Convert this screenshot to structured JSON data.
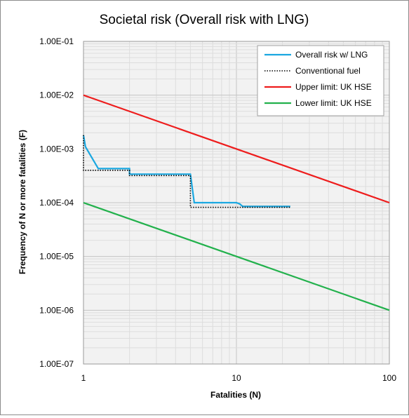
{
  "chart_data": {
    "type": "line",
    "title": "Societal risk (Overall risk with LNG)",
    "xlabel": "Fatalities (N)",
    "ylabel": "Frequency of N or more fatalities (F)",
    "x_scale": "log",
    "y_scale": "log",
    "xlim": [
      1,
      100
    ],
    "ylim": [
      1e-07,
      0.1
    ],
    "x_tick_labels": [
      "1",
      "10",
      "100"
    ],
    "y_tick_labels": [
      "1.00E-07",
      "1.00E-06",
      "1.00E-05",
      "1.00E-04",
      "1.00E-03",
      "1.00E-02",
      "1.00E-01"
    ],
    "grid": true,
    "legend_position": "top-right",
    "series": [
      {
        "name": "Overall risk w/ LNG",
        "color": "#1aa7e0",
        "dash": "solid",
        "points": [
          [
            1,
            0.0018
          ],
          [
            1.03,
            0.0011
          ],
          [
            1.1,
            0.0008
          ],
          [
            1.25,
            0.00043
          ],
          [
            2,
            0.00043
          ],
          [
            2,
            0.00034
          ],
          [
            5,
            0.00034
          ],
          [
            5.3,
            0.0001
          ],
          [
            10,
            0.0001
          ],
          [
            10.5,
            9.5e-05
          ],
          [
            11,
            8.5e-05
          ],
          [
            22.5,
            8.5e-05
          ]
        ]
      },
      {
        "name": "Conventional fuel",
        "color": "#000000",
        "dash": "dotted",
        "points": [
          [
            1,
            0.0018
          ],
          [
            1,
            0.0004
          ],
          [
            2,
            0.0004
          ],
          [
            2,
            0.00032
          ],
          [
            5,
            0.00032
          ],
          [
            5,
            8.2e-05
          ],
          [
            22.5,
            8.2e-05
          ]
        ]
      },
      {
        "name": "Upper limit: UK HSE",
        "color": "#ee1c1c",
        "dash": "solid",
        "points": [
          [
            1,
            0.01
          ],
          [
            100,
            0.0001
          ]
        ]
      },
      {
        "name": "Lower limit: UK HSE",
        "color": "#22b14c",
        "dash": "solid",
        "points": [
          [
            1,
            0.0001
          ],
          [
            100,
            1e-06
          ]
        ]
      }
    ]
  }
}
